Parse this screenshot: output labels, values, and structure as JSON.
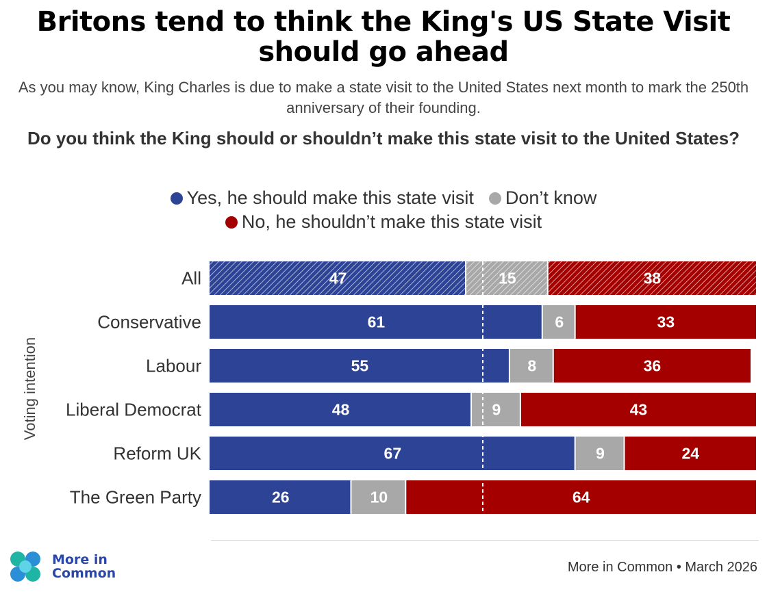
{
  "title_line1": "Britons tend to think the King's US State Visit",
  "title_line2": "should go ahead",
  "subtitle": "As you may know, King Charles is due to make a state visit to the United States next month to mark the 250th anniversary of their founding.",
  "question": "Do you think the King should or shouldn’t make this state visit to the United States?",
  "y_axis_label": "Voting intention",
  "brand": {
    "line1": "More in",
    "line2": "Common"
  },
  "source": "More in Common • March 2026",
  "colors": {
    "yes": "#2d4396",
    "dont_know": "#a8a8a8",
    "no": "#a50000",
    "midline": "#ffffff"
  },
  "chart_data": {
    "type": "bar",
    "orientation": "horizontal",
    "stacked": true,
    "xlim": [
      0,
      100
    ],
    "midline_at": 50,
    "categories": [
      "All",
      "Conservative",
      "Labour",
      "Liberal Democrat",
      "Reform UK",
      "The Green Party"
    ],
    "highlighted_category": "All",
    "series": [
      {
        "name": "Yes, he should make this state visit",
        "color": "#2d4396",
        "values": [
          47,
          61,
          55,
          48,
          67,
          26
        ]
      },
      {
        "name": "Don’t know",
        "color": "#a8a8a8",
        "values": [
          15,
          6,
          8,
          9,
          9,
          10
        ]
      },
      {
        "name": "No, he shouldn’t make this state visit",
        "color": "#a50000",
        "values": [
          38,
          33,
          36,
          43,
          24,
          64
        ]
      }
    ],
    "legend_position": "top-center",
    "grid": false
  }
}
